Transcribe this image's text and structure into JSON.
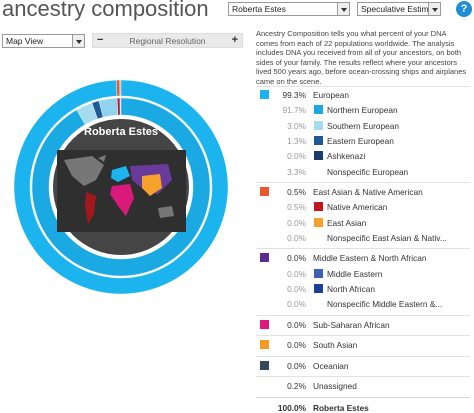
{
  "header": {
    "title": "ancestry composition",
    "person_select": "Roberta Estes",
    "estimate_select": "Speculative Estimate",
    "help": "?"
  },
  "controls": {
    "view_select": "Map View",
    "resolution_minus": "−",
    "resolution_label": "Regional Resolution",
    "resolution_plus": "+"
  },
  "chart_center_label": "Roberta Estes",
  "description": "Ancestry Composition tells you what percent of your DNA comes from each of 22 populations worldwide. The analysis includes DNA you received from all of your ancestors, on both sides of your family. The results reflect where your ancestors lived 500 years ago, before ocean-crossing ships and airplanes came on the scene.",
  "table": {
    "rows": [
      {
        "percent": "99.3%",
        "name": "European",
        "level": "group",
        "color": "#1cb4ee"
      },
      {
        "percent": "91.7%",
        "name": "Northern European",
        "level": "sub",
        "color": "#1aa9e3"
      },
      {
        "percent": "3.0%",
        "name": "Southern European",
        "level": "sub",
        "color": "#a5dbee"
      },
      {
        "percent": "1.3%",
        "name": "Eastern European",
        "level": "sub",
        "color": "#1d5a97"
      },
      {
        "percent": "0.0%",
        "name": "Ashkenazi",
        "level": "sub",
        "color": "#1a3d6b"
      },
      {
        "percent": "3.3%",
        "name": "Nonspecific European",
        "level": "sub"
      },
      {
        "percent": "0.5%",
        "name": "East Asian & Native American",
        "level": "group",
        "color": "#e9592b"
      },
      {
        "percent": "0.5%",
        "name": "Native American",
        "level": "sub",
        "color": "#c2161c"
      },
      {
        "percent": "0.0%",
        "name": "East Asian",
        "level": "sub",
        "color": "#f6a22a"
      },
      {
        "percent": "0.0%",
        "name": "Nonspecific East Asian & Nativ...",
        "level": "sub"
      },
      {
        "percent": "0.0%",
        "name": "Middle Eastern & North African",
        "level": "group",
        "color": "#5b2d8e"
      },
      {
        "percent": "0.0%",
        "name": "Middle Eastern",
        "level": "sub",
        "color": "#3b62b3"
      },
      {
        "percent": "0.0%",
        "name": "North African",
        "level": "sub",
        "color": "#1c3f9c"
      },
      {
        "percent": "0.0%",
        "name": "Nonspecific Middle Eastern &...",
        "level": "sub"
      },
      {
        "percent": "0.0%",
        "name": "Sub-Saharan African",
        "level": "group",
        "color": "#e0197b"
      },
      {
        "percent": "0.0%",
        "name": "South Asian",
        "level": "group",
        "color": "#f39a22"
      },
      {
        "percent": "0.0%",
        "name": "Oceanian",
        "level": "group",
        "color": "#34495a"
      },
      {
        "percent": "0.2%",
        "name": "Unassigned",
        "level": "group"
      }
    ],
    "total": {
      "percent": "100.0%",
      "name": "Roberta Estes"
    }
  }
}
